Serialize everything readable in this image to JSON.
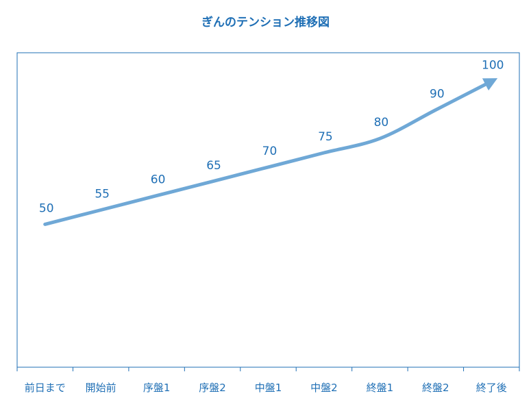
{
  "chart_data": {
    "type": "line",
    "title": "ぎんのテンション推移図",
    "xlabel": "",
    "ylabel": "",
    "categories": [
      "前日まで",
      "開始前",
      "序盤1",
      "序盤2",
      "中盤1",
      "中盤2",
      "終盤1",
      "終盤2",
      "終了後"
    ],
    "series": [
      {
        "values": [
          50,
          55,
          60,
          65,
          70,
          75,
          80,
          90,
          100
        ]
      }
    ],
    "data_labels": [
      "50",
      "55",
      "60",
      "65",
      "70",
      "75",
      "80",
      "90",
      "100"
    ],
    "ylim": [
      0,
      110
    ],
    "grid": false,
    "legend": "none",
    "line_end": "arrow",
    "colors": {
      "line": "#6fa8d6",
      "text": "#1f6fb5",
      "axis": "#1f6fb5"
    }
  }
}
